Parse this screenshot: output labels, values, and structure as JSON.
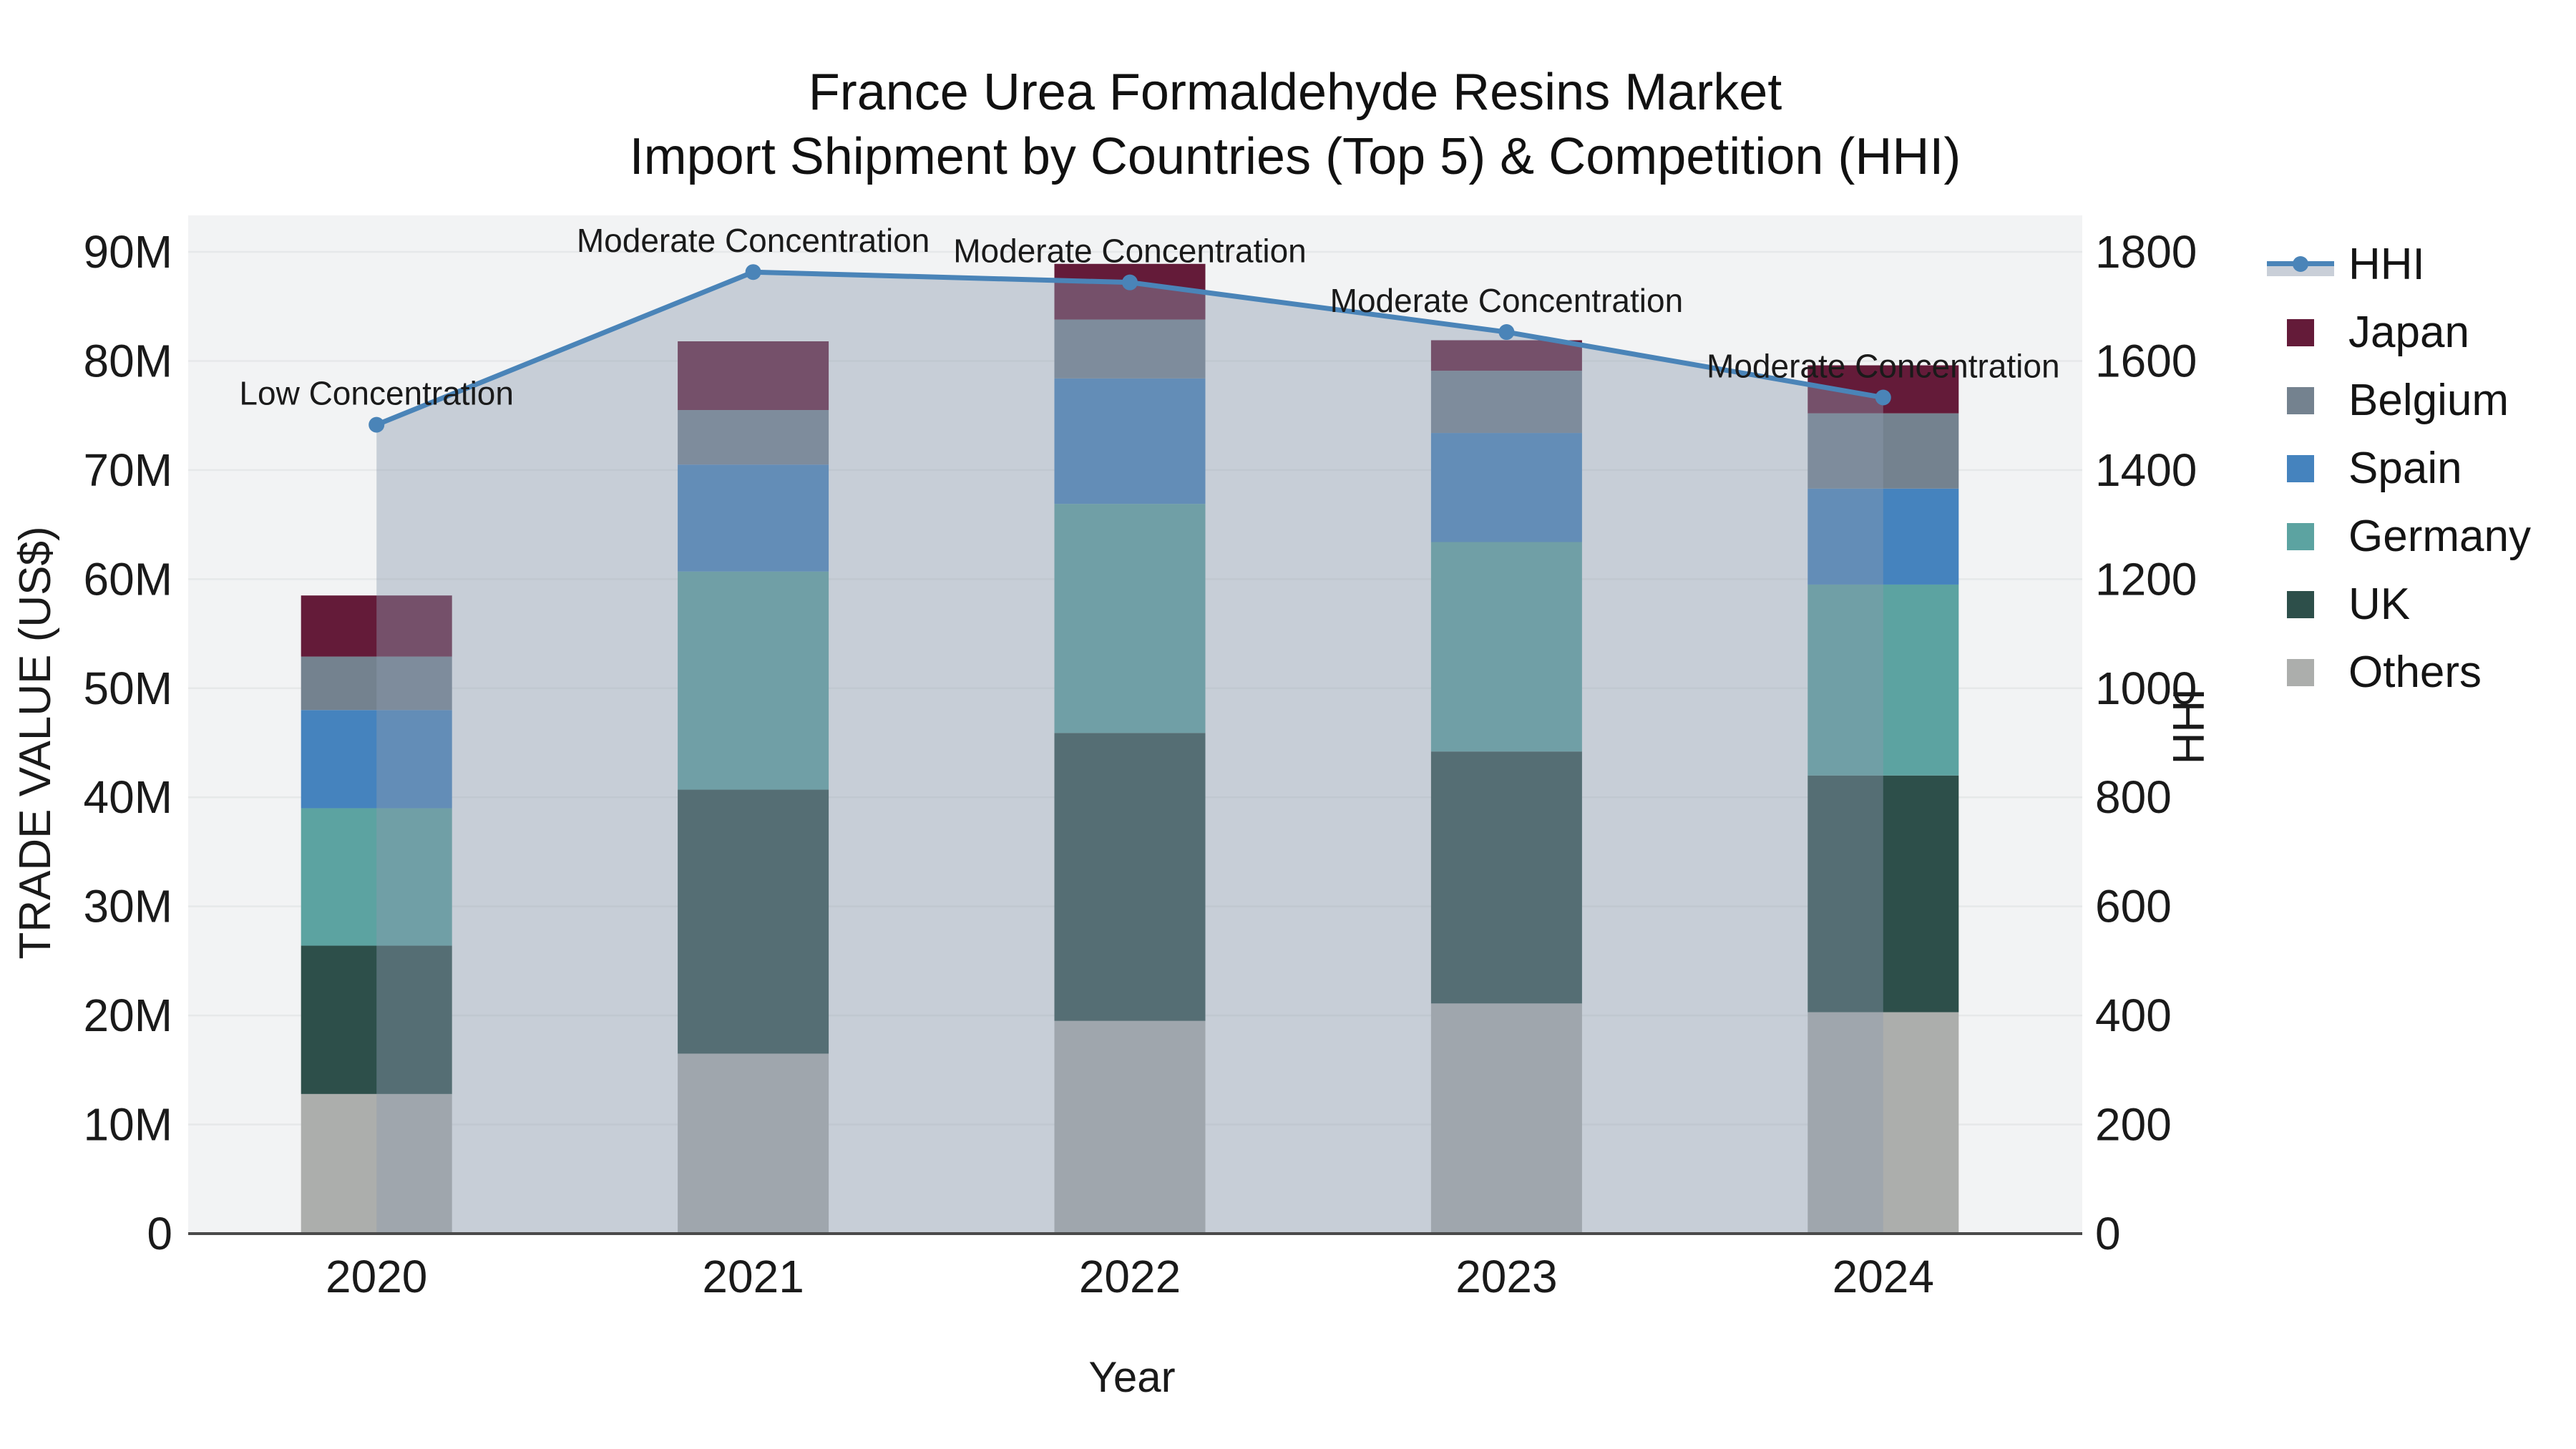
{
  "title": {
    "line1": "France Urea Formaldehyde Resins Market",
    "line2": "Import Shipment by Countries (Top 5) & Competition (HHI)"
  },
  "axes": {
    "y_left": {
      "title": "TRADE VALUE (US$)",
      "tick_labels": [
        "0",
        "10M",
        "20M",
        "30M",
        "40M",
        "50M",
        "60M",
        "70M",
        "80M",
        "90M"
      ],
      "range": [
        0,
        90
      ]
    },
    "y_right": {
      "title": "HHI",
      "tick_labels": [
        "0",
        "200",
        "400",
        "600",
        "800",
        "1000",
        "1200",
        "1400",
        "1600",
        "1800"
      ],
      "range": [
        0,
        1800
      ]
    },
    "x": {
      "title": "Year",
      "categories": [
        "2020",
        "2021",
        "2022",
        "2023",
        "2024"
      ]
    }
  },
  "legend": {
    "items": [
      {
        "label": "HHI",
        "type": "line-area",
        "color": "#4A84B8"
      },
      {
        "label": "Japan",
        "type": "swatch",
        "color": "#641B39"
      },
      {
        "label": "Belgium",
        "type": "swatch",
        "color": "#74828F"
      },
      {
        "label": "Spain",
        "type": "swatch",
        "color": "#4583BE"
      },
      {
        "label": "Germany",
        "type": "swatch",
        "color": "#5CA3A1"
      },
      {
        "label": "UK",
        "type": "swatch",
        "color": "#2D4F4A"
      },
      {
        "label": "Others",
        "type": "swatch",
        "color": "#ACAEAC"
      }
    ]
  },
  "chart_data": {
    "type": "bar+line",
    "title": "France Urea Formaldehyde Resins Market — Import Shipment by Countries (Top 5) & Competition (HHI)",
    "xlabel": "Year",
    "ylabel_left": "TRADE VALUE (US$)",
    "ylabel_right": "HHI",
    "categories": [
      "2020",
      "2021",
      "2022",
      "2023",
      "2024"
    ],
    "stack_order_bottom_to_top": [
      "Others",
      "UK",
      "Germany",
      "Spain",
      "Belgium",
      "Japan"
    ],
    "series": [
      {
        "name": "Others",
        "unit": "M US$",
        "values": [
          12.8,
          16.5,
          19.5,
          21.1,
          20.3
        ]
      },
      {
        "name": "UK",
        "unit": "M US$",
        "values": [
          13.6,
          24.2,
          26.4,
          23.1,
          21.7
        ]
      },
      {
        "name": "Germany",
        "unit": "M US$",
        "values": [
          12.6,
          20.0,
          21.0,
          19.2,
          17.5
        ]
      },
      {
        "name": "Spain",
        "unit": "M US$",
        "values": [
          9.0,
          9.8,
          11.5,
          10.0,
          8.8
        ]
      },
      {
        "name": "Belgium",
        "unit": "M US$",
        "values": [
          4.9,
          5.0,
          5.4,
          5.7,
          6.9
        ]
      },
      {
        "name": "Japan",
        "unit": "M US$",
        "values": [
          5.6,
          6.3,
          5.1,
          2.8,
          4.4
        ]
      }
    ],
    "bar_totals": [
      58.5,
      81.8,
      88.9,
      81.9,
      79.6
    ],
    "hhi_line": {
      "name": "HHI",
      "values": [
        1483,
        1763,
        1744,
        1653,
        1533
      ]
    },
    "annotations": [
      {
        "category": "2020",
        "text": "Low Concentration"
      },
      {
        "category": "2021",
        "text": "Moderate Concentration"
      },
      {
        "category": "2022",
        "text": "Moderate Concentration"
      },
      {
        "category": "2023",
        "text": "Moderate Concentration"
      },
      {
        "category": "2024",
        "text": "Moderate Concentration"
      }
    ],
    "ylim_left": [
      0,
      90
    ],
    "ylim_right": [
      0,
      1800
    ],
    "grid": "horizontal",
    "legend_position": "right"
  },
  "colors": {
    "plot_bg": "#F2F3F4",
    "gridline": "#E6E8E9",
    "axis_line": "#4A4A4A",
    "hhi_line": "#4A84B8",
    "area_fill": "rgba(140,154,175,0.42)",
    "Japan": "#641B39",
    "Belgium": "#74828F",
    "Spain": "#4583BE",
    "Germany": "#5CA3A1",
    "UK": "#2D4F4A",
    "Others": "#ACAEAC"
  }
}
